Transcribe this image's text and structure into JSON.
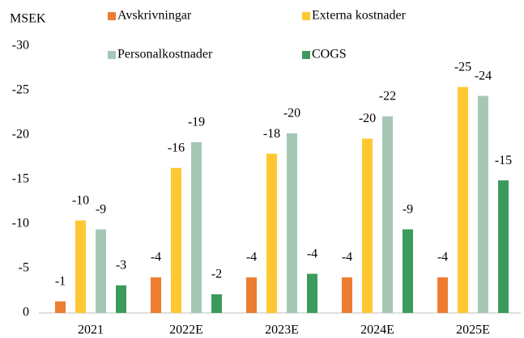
{
  "chart_data": {
    "type": "bar",
    "y_label": "MSEK",
    "categories": [
      "2021",
      "2022E",
      "2023E",
      "2024E",
      "2025E"
    ],
    "series": [
      {
        "name": "Avskrivningar",
        "color": "#ed7d31",
        "values": [
          -1.3,
          -4.0,
          -4.0,
          -4.0,
          -4.0
        ],
        "value_labels": [
          "-1",
          "-4",
          "-4",
          "-4",
          "-4"
        ]
      },
      {
        "name": "Externa kostnader",
        "color": "#ffc832",
        "values": [
          -10.4,
          -16.3,
          -17.9,
          -19.6,
          -25.4
        ],
        "value_labels": [
          "-10",
          "-16",
          "-18",
          "-20",
          "-25"
        ]
      },
      {
        "name": "Personalkostnader",
        "color": "#a5c8b4",
        "values": [
          -9.4,
          -19.2,
          -20.2,
          -22.1,
          -24.4
        ],
        "value_labels": [
          "-9",
          "-19",
          "-20",
          "-22",
          "-24"
        ]
      },
      {
        "name": "COGS",
        "color": "#3d9a5e",
        "values": [
          -3.1,
          -2.1,
          -4.4,
          -9.4,
          -14.9
        ],
        "value_labels": [
          "-3",
          "-2",
          "-4",
          "-9",
          "-15"
        ]
      }
    ],
    "ylim": [
      0,
      -30
    ],
    "yticks": [
      0,
      -5,
      -10,
      -15,
      -20,
      -25,
      -30
    ],
    "grid": false
  }
}
